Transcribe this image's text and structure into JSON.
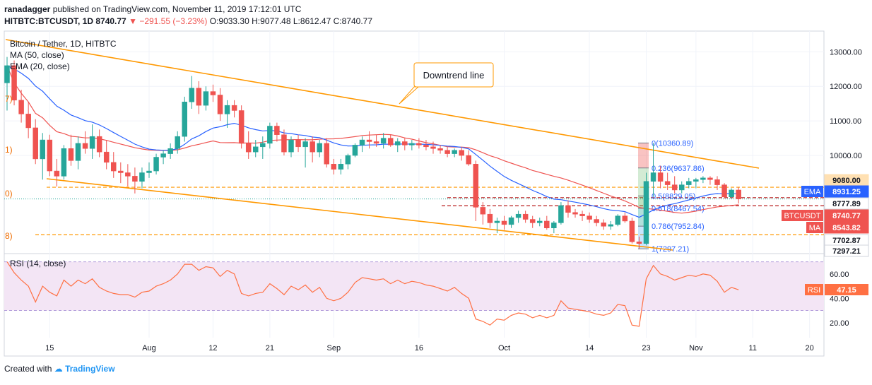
{
  "header": {
    "user": "ranadagger",
    "published_text": "published on TradingView.com, November 11, 2019 17:12:01 UTC",
    "symbol": "HITBTC:BTCUSDT, 1D",
    "price": "8740.77",
    "change": "−291.55 (−3.23%)",
    "o_label": "O:",
    "o_value": "9033.30",
    "h_label": "H:",
    "h_value": "9077.48",
    "l_label": "L:",
    "l_value": "8612.47",
    "c_label": "C:",
    "c_value": "8740.77"
  },
  "legend": {
    "title": "Bitcoin / Tether, 1D, HITBTC",
    "ma": "MA (50, close)",
    "ema": "EMA (20, close)"
  },
  "annotation": "Downtrend line",
  "rsi_label": "RSI (14, close)",
  "footer": {
    "created_with": "Created with",
    "brand": "TradingView"
  },
  "colors": {
    "up": "#26a69a",
    "down": "#ef5350",
    "ema": "#2962ff",
    "ma": "#ef5350",
    "trendline": "#ff9800",
    "rsi": "#ff7043",
    "rsi_band": "#f3e5f5",
    "fib_label": "#2962ff"
  },
  "chart_data": {
    "type": "candlestick",
    "price_axis": {
      "ylim": [
        7220,
        13600
      ],
      "ticks": [
        "13000.00",
        "12000.00",
        "11000.00",
        "10000.00"
      ]
    },
    "x_ticks": [
      "15",
      "Aug",
      "12",
      "21",
      "Sep",
      "16",
      "Oct",
      "14",
      "23",
      "Nov",
      "11",
      "20"
    ],
    "fib_levels": [
      {
        "label": "0(10360.89)",
        "value": 10360.89
      },
      {
        "label": "0.236(9637.86)",
        "value": 9637.86
      },
      {
        "label": "0.5(8829.05)",
        "value": 8829.05
      },
      {
        "label": "0.618(8467.54)",
        "value": 8467.54
      },
      {
        "label": "0.786(7952.84)",
        "value": 7952.84
      },
      {
        "label": "1(7297.21)",
        "value": 7297.21
      }
    ],
    "horizontal_levels": [
      9080,
      8777.89,
      8543.82,
      7702.87
    ],
    "price_badges": [
      {
        "name": "",
        "text": "9080.00",
        "kind": "level"
      },
      {
        "name": "EMA",
        "text": "8931.25",
        "kind": "ema"
      },
      {
        "name": "",
        "text": "8777.89",
        "kind": "plain"
      },
      {
        "name": "BTCUSDT",
        "text": "8740.77",
        "kind": "price"
      },
      {
        "name": "MA",
        "text": "8543.82",
        "kind": "ma"
      },
      {
        "name": "",
        "text": "7702.87",
        "kind": "plain"
      },
      {
        "name": "",
        "text": "7297.21",
        "kind": "plain"
      }
    ],
    "rsi_axis": {
      "ylim": [
        10,
        75
      ],
      "ticks": [
        "60.00",
        "40.00",
        "20.00"
      ],
      "band": [
        30,
        70
      ]
    },
    "rsi_badge": {
      "name": "RSI",
      "text": "47.15"
    },
    "left_cut_labels": [
      "7)",
      "1)",
      "0)",
      "8)"
    ],
    "candles": [
      [
        12100,
        12850,
        11300,
        12600
      ],
      [
        12600,
        12750,
        11450,
        11600
      ],
      [
        11600,
        11900,
        10950,
        11200
      ],
      [
        11200,
        11550,
        10500,
        10800
      ],
      [
        10800,
        11050,
        9750,
        9900
      ],
      [
        9900,
        10650,
        9300,
        10450
      ],
      [
        10450,
        10600,
        9400,
        9550
      ],
      [
        9550,
        9900,
        9100,
        9400
      ],
      [
        9400,
        10300,
        9300,
        10200
      ],
      [
        10200,
        10600,
        9700,
        9850
      ],
      [
        9850,
        10550,
        9600,
        10350
      ],
      [
        10350,
        10700,
        10050,
        10200
      ],
      [
        10200,
        10900,
        9900,
        10550
      ],
      [
        10550,
        10750,
        9950,
        10100
      ],
      [
        10100,
        10450,
        9600,
        9800
      ],
      [
        9800,
        10100,
        9350,
        9550
      ],
      [
        9550,
        9800,
        9200,
        9500
      ],
      [
        9500,
        9750,
        9100,
        9400
      ],
      [
        9400,
        9650,
        8900,
        9250
      ],
      [
        9250,
        9650,
        9050,
        9500
      ],
      [
        9500,
        9800,
        9350,
        9550
      ],
      [
        9550,
        10050,
        9450,
        9950
      ],
      [
        9950,
        10150,
        9750,
        10050
      ],
      [
        10050,
        10350,
        9900,
        10200
      ],
      [
        10200,
        10700,
        10050,
        10550
      ],
      [
        10550,
        11700,
        10400,
        11550
      ],
      [
        11550,
        12300,
        11350,
        11950
      ],
      [
        11950,
        12150,
        11200,
        11450
      ],
      [
        11450,
        12000,
        11300,
        11850
      ],
      [
        11850,
        12050,
        11550,
        11750
      ],
      [
        11750,
        11950,
        11000,
        11200
      ],
      [
        11200,
        11600,
        10800,
        11450
      ],
      [
        11450,
        11600,
        11100,
        11300
      ],
      [
        11300,
        11450,
        10200,
        10350
      ],
      [
        10350,
        10700,
        9900,
        10100
      ],
      [
        10100,
        10450,
        9950,
        10250
      ],
      [
        10250,
        10550,
        9900,
        10350
      ],
      [
        10350,
        10950,
        10200,
        10850
      ],
      [
        10850,
        10950,
        10400,
        10600
      ],
      [
        10600,
        10750,
        10000,
        10100
      ],
      [
        10100,
        10550,
        9950,
        10450
      ],
      [
        10450,
        10600,
        10100,
        10250
      ],
      [
        10250,
        10500,
        9650,
        10400
      ],
      [
        10400,
        10550,
        9800,
        10100
      ],
      [
        10100,
        10450,
        9950,
        10350
      ],
      [
        10350,
        10500,
        9650,
        9750
      ],
      [
        9750,
        9900,
        9450,
        9600
      ],
      [
        9600,
        9900,
        9450,
        9750
      ],
      [
        9750,
        10050,
        9600,
        10000
      ],
      [
        10000,
        10350,
        9950,
        10300
      ],
      [
        10300,
        10550,
        10100,
        10450
      ],
      [
        10450,
        10700,
        10200,
        10400
      ],
      [
        10400,
        10600,
        10250,
        10350
      ],
      [
        10350,
        10650,
        10200,
        10500
      ],
      [
        10500,
        10600,
        10250,
        10300
      ],
      [
        10300,
        10500,
        10100,
        10400
      ],
      [
        10400,
        10500,
        10150,
        10300
      ],
      [
        10300,
        10450,
        10150,
        10350
      ],
      [
        10350,
        10500,
        10200,
        10300
      ],
      [
        10300,
        10450,
        10150,
        10250
      ],
      [
        10250,
        10400,
        10050,
        10200
      ],
      [
        10200,
        10300,
        10050,
        10150
      ],
      [
        10150,
        10250,
        9950,
        10050
      ],
      [
        10050,
        10200,
        9950,
        10150
      ],
      [
        10150,
        10250,
        9850,
        10000
      ],
      [
        10000,
        10150,
        9700,
        9750
      ],
      [
        9750,
        9850,
        8100,
        8500
      ],
      [
        8500,
        8650,
        8000,
        8300
      ],
      [
        8300,
        8450,
        7900,
        8050
      ],
      [
        8050,
        8200,
        7750,
        8100
      ],
      [
        8100,
        8250,
        7850,
        8000
      ],
      [
        8000,
        8250,
        7900,
        8200
      ],
      [
        8200,
        8400,
        8050,
        8300
      ],
      [
        8300,
        8400,
        8050,
        8150
      ],
      [
        8150,
        8250,
        7900,
        8050
      ],
      [
        8050,
        8200,
        7950,
        8100
      ],
      [
        8100,
        8250,
        7850,
        7900
      ],
      [
        7900,
        8100,
        7750,
        8050
      ],
      [
        8050,
        8650,
        8000,
        8550
      ],
      [
        8550,
        8700,
        8200,
        8350
      ],
      [
        8350,
        8450,
        8200,
        8300
      ],
      [
        8300,
        8400,
        8100,
        8250
      ],
      [
        8250,
        8350,
        8050,
        8150
      ],
      [
        8150,
        8250,
        7950,
        8050
      ],
      [
        8050,
        8150,
        7850,
        7950
      ],
      [
        7950,
        8100,
        7850,
        8000
      ],
      [
        8000,
        8300,
        7950,
        8250
      ],
      [
        8250,
        8350,
        8050,
        8100
      ],
      [
        8100,
        8200,
        7450,
        7500
      ],
      [
        7500,
        7650,
        7300,
        7450
      ],
      [
        7450,
        9500,
        7400,
        9250
      ],
      [
        9250,
        10360,
        8800,
        9500
      ],
      [
        9500,
        9700,
        9050,
        9250
      ],
      [
        9250,
        9500,
        9000,
        9150
      ],
      [
        9150,
        9400,
        8900,
        9000
      ],
      [
        9000,
        9250,
        8900,
        9150
      ],
      [
        9150,
        9350,
        9050,
        9250
      ],
      [
        9250,
        9350,
        9050,
        9300
      ],
      [
        9300,
        9400,
        9200,
        9350
      ],
      [
        9350,
        9400,
        9150,
        9300
      ],
      [
        9300,
        9400,
        9000,
        9150
      ],
      [
        9150,
        9200,
        8750,
        8800
      ],
      [
        8800,
        9050,
        8750,
        9000
      ],
      [
        9000,
        9080,
        8610,
        8740
      ]
    ],
    "rsi": [
      70,
      61,
      55,
      50,
      37,
      50,
      45,
      42,
      55,
      50,
      55,
      52,
      56,
      49,
      46,
      44,
      43,
      43,
      41,
      45,
      46,
      50,
      52,
      55,
      60,
      68,
      68,
      63,
      66,
      65,
      58,
      63,
      60,
      44,
      42,
      44,
      45,
      52,
      48,
      43,
      50,
      47,
      51,
      45,
      49,
      40,
      38,
      40,
      45,
      53,
      57,
      56,
      55,
      56,
      52,
      55,
      52,
      54,
      53,
      51,
      50,
      48,
      46,
      49,
      44,
      40,
      23,
      21,
      18,
      23,
      22,
      26,
      28,
      27,
      24,
      26,
      24,
      26,
      38,
      32,
      31,
      30,
      29,
      27,
      26,
      28,
      35,
      34,
      18,
      17,
      56,
      67,
      60,
      58,
      55,
      57,
      59,
      58,
      60,
      59,
      54,
      45,
      49,
      47
    ]
  }
}
